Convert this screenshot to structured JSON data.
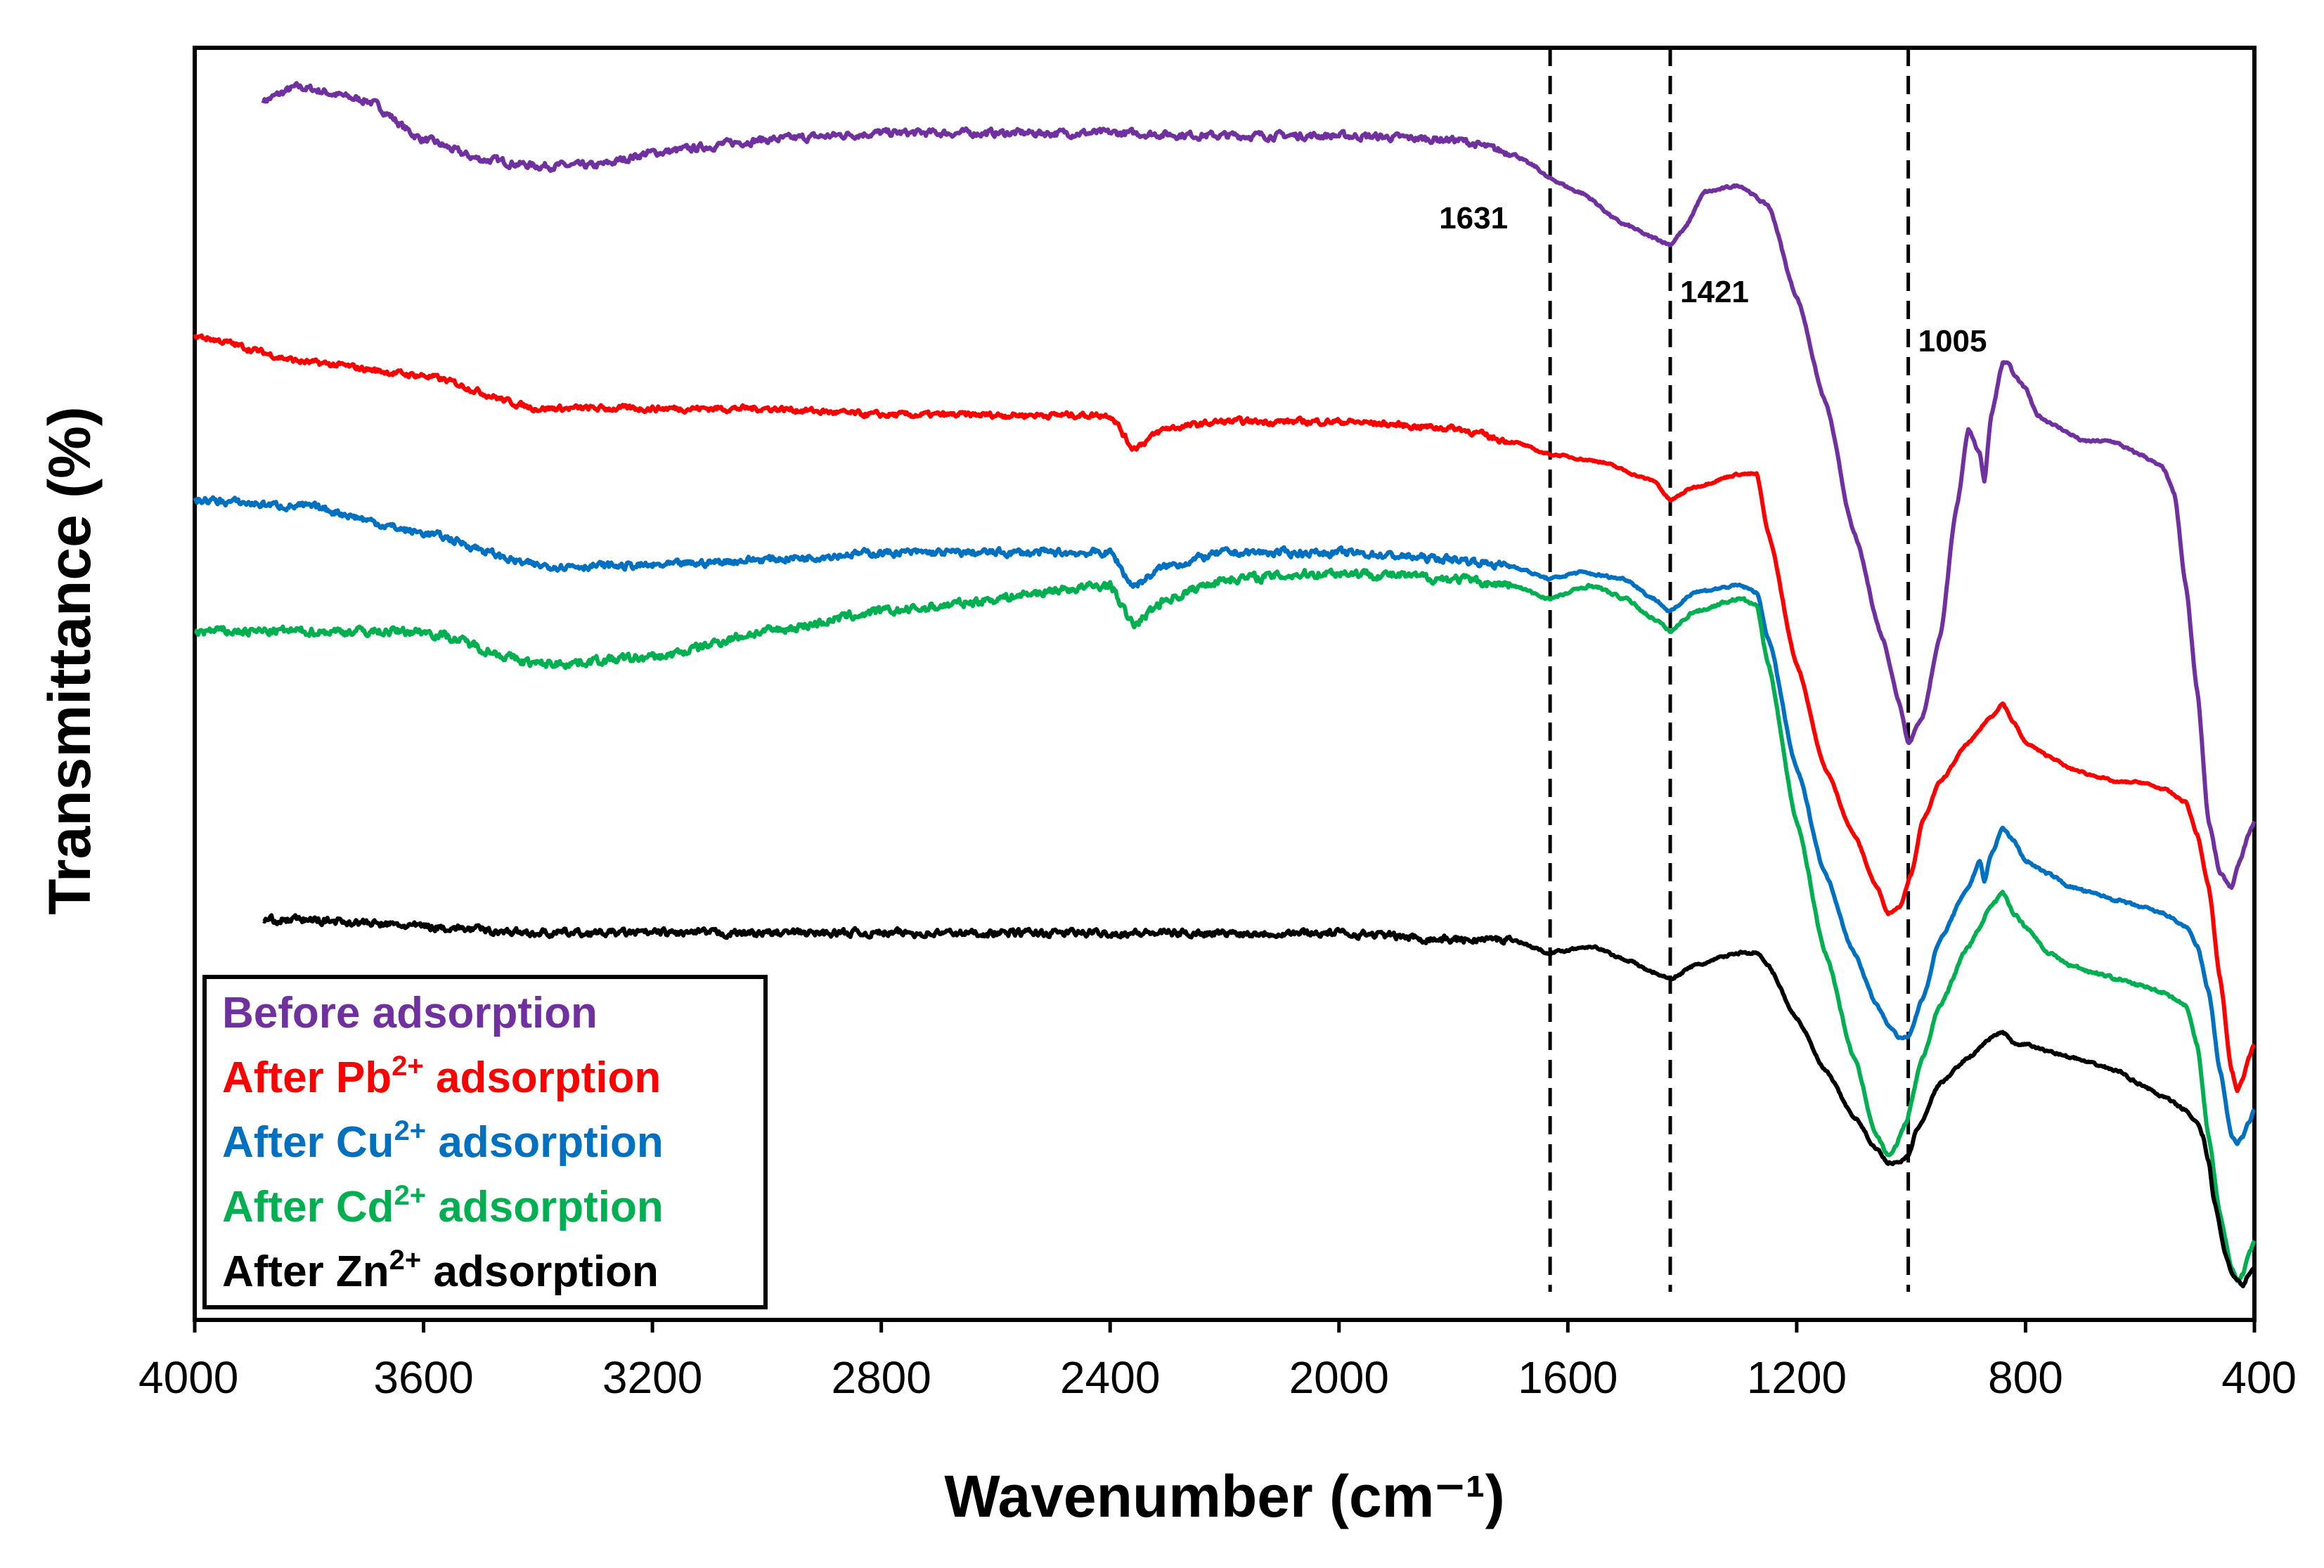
{
  "chart_data": {
    "type": "line",
    "title": "",
    "xlabel": "Wavenumber (cm⁻¹)",
    "ylabel": "Transmittance (%)",
    "xlim": [
      4000,
      400
    ],
    "x_reversed": true,
    "x_ticks": [
      "4000",
      "3600",
      "3200",
      "2800",
      "2400",
      "2000",
      "1600",
      "1200",
      "800",
      "400"
    ],
    "grid": false,
    "legend_position": "bottom-left",
    "reference_lines": [
      {
        "x": 1631,
        "label": "1631",
        "style": "dashed"
      },
      {
        "x": 1421,
        "label": "1421",
        "style": "dashed"
      },
      {
        "x": 1005,
        "label": "1005",
        "style": "dashed"
      }
    ],
    "series": [
      {
        "name": "Before adsorption",
        "legend_prefix": "Before adsorption",
        "legend_sup": "",
        "legend_suffix": "",
        "color": "#7030A0",
        "noise": 0.5,
        "x": [
          3880,
          3820,
          3700,
          3600,
          3500,
          3400,
          3300,
          3200,
          3000,
          2800,
          2600,
          2400,
          2200,
          2000,
          1800,
          1700,
          1660,
          1631,
          1580,
          1500,
          1450,
          1421,
          1400,
          1360,
          1300,
          1250,
          1200,
          1150,
          1100,
          1050,
          1020,
          1005,
          980,
          950,
          920,
          900,
          880,
          872,
          860,
          840,
          830,
          820,
          800,
          780,
          760,
          740,
          720,
          700,
          680,
          650,
          600,
          560,
          540,
          520,
          500,
          480,
          460,
          440,
          425,
          410,
          400
        ],
        "y": [
          93,
          94,
          93,
          90,
          88.5,
          88,
          88,
          89,
          90,
          90.5,
          90.5,
          90.5,
          90.3,
          90.3,
          90,
          89,
          88,
          87,
          86,
          83.5,
          82.5,
          82,
          83,
          86,
          86.5,
          85,
          78,
          70,
          60,
          52,
          47,
          44,
          46,
          52,
          62,
          68,
          66,
          64,
          69,
          73,
          73,
          72,
          71,
          69,
          68.5,
          68,
          67.5,
          67,
          67,
          67,
          66,
          65,
          63,
          56,
          48,
          38,
          34,
          33,
          35,
          37,
          38
        ]
      },
      {
        "name": "After Pb2+ adsorption",
        "legend_prefix": "After Pb",
        "legend_sup": "2+",
        "legend_suffix": " adsorption",
        "color": "#FF0000",
        "noise": 0.4,
        "x": [
          4000,
          3800,
          3600,
          3400,
          3200,
          3000,
          2800,
          2400,
          2360,
          2300,
          2200,
          2000,
          1800,
          1700,
          1631,
          1550,
          1450,
          1421,
          1380,
          1300,
          1270,
          1250,
          1200,
          1150,
          1100,
          1060,
          1040,
          1020,
          1000,
          980,
          950,
          900,
          860,
          840,
          820,
          800,
          760,
          720,
          680,
          640,
          600,
          560,
          520,
          500,
          480,
          460,
          440,
          430,
          420,
          410,
          400
        ],
        "y": [
          75,
          73,
          72,
          69.5,
          69.5,
          69.5,
          69,
          69,
          66.5,
          68,
          68.5,
          68.5,
          68,
          67,
          66,
          65.5,
          64,
          62.5,
          63.5,
          64.5,
          64.5,
          60,
          50,
          42,
          37,
          33,
          31,
          31.5,
          34,
          38,
          41,
          44,
          46,
          47,
          45.5,
          44,
          43,
          42,
          41.5,
          41,
          41,
          40.5,
          39.5,
          37,
          33,
          26,
          19,
          17.5,
          18.5,
          20,
          21
        ]
      },
      {
        "name": "After Cu2+ adsorption",
        "legend_prefix": "After Cu",
        "legend_sup": "2+",
        "legend_suffix": " adsorption",
        "color": "#0070C0",
        "noise": 0.5,
        "x": [
          4000,
          3800,
          3600,
          3400,
          3200,
          3000,
          2800,
          2400,
          2360,
          2300,
          2200,
          2000,
          1800,
          1700,
          1631,
          1580,
          1500,
          1450,
          1421,
          1380,
          1300,
          1270,
          1250,
          1200,
          1150,
          1100,
          1060,
          1040,
          1020,
          1005,
          980,
          950,
          900,
          880,
          872,
          860,
          840,
          820,
          800,
          760,
          720,
          680,
          640,
          600,
          560,
          520,
          500,
          480,
          460,
          440,
          430,
          420,
          410,
          400
        ],
        "y": [
          62.5,
          62,
          60,
          57.5,
          57.5,
          58,
          58.5,
          58.5,
          56,
          57.5,
          58.5,
          58.5,
          58,
          57.5,
          56.5,
          57,
          56.5,
          55,
          54,
          55.5,
          56,
          55.5,
          52,
          42,
          34,
          28,
          24,
          22.5,
          21.5,
          21.5,
          24.5,
          29,
          33,
          35,
          33.5,
          35.5,
          37.5,
          36.5,
          35,
          34,
          33,
          32.5,
          32,
          31.5,
          31,
          30,
          28.5,
          25,
          19,
          14,
          13.5,
          14,
          15,
          16
        ]
      },
      {
        "name": "After Cd2+ adsorption",
        "legend_prefix": "After Cd",
        "legend_sup": "2+",
        "legend_suffix": " adsorption",
        "color": "#00B050",
        "noise": 0.6,
        "x": [
          4000,
          3800,
          3600,
          3400,
          3200,
          3000,
          2800,
          2400,
          2360,
          2300,
          2200,
          2000,
          1800,
          1700,
          1631,
          1560,
          1500,
          1450,
          1421,
          1380,
          1300,
          1270,
          1250,
          1200,
          1150,
          1100,
          1060,
          1040,
          1030,
          1010,
          980,
          950,
          900,
          860,
          840,
          820,
          800,
          760,
          720,
          680,
          640,
          600,
          560,
          520,
          500,
          480,
          460,
          440,
          430,
          420,
          410,
          400
        ],
        "y": [
          52.5,
          52.5,
          52.5,
          50,
          50.5,
          52.5,
          54,
          56,
          53,
          55,
          56.5,
          57,
          56.5,
          56,
          55,
          56,
          55,
          53.5,
          52.5,
          54,
          55,
          54.5,
          50,
          38,
          28,
          20,
          14,
          12.5,
          13,
          15,
          20,
          24,
          28.5,
          31.5,
          32.5,
          31,
          30,
          28,
          27,
          26.5,
          26,
          25.5,
          25,
          24,
          21,
          14,
          8,
          4,
          3,
          3.5,
          5,
          6
        ]
      },
      {
        "name": "After Zn2+ adsorption",
        "legend_prefix": "After Zn",
        "legend_sup": "2+",
        "legend_suffix": " adsorption",
        "color": "#000000",
        "noise": 0.5,
        "x": [
          3880,
          3800,
          3600,
          3400,
          3200,
          3000,
          2800,
          2400,
          2200,
          2000,
          1800,
          1700,
          1631,
          1560,
          1500,
          1450,
          1421,
          1380,
          1300,
          1270,
          1250,
          1200,
          1150,
          1100,
          1060,
          1040,
          1020,
          1005,
          990,
          950,
          900,
          860,
          840,
          820,
          800,
          760,
          720,
          680,
          640,
          600,
          560,
          520,
          500,
          490,
          480,
          470,
          450,
          440,
          430,
          420,
          410,
          400
        ],
        "y": [
          30.5,
          30.5,
          30,
          29.5,
          29.5,
          29.5,
          29.5,
          29.5,
          29.5,
          29.5,
          29,
          29,
          28,
          28.5,
          27.5,
          26.5,
          26,
          27,
          28,
          28,
          27,
          23,
          19,
          15.5,
          13,
          12,
          12,
          12.5,
          14.5,
          18,
          20,
          21.5,
          22,
          21,
          21,
          20.5,
          20,
          19.5,
          19,
          18,
          17,
          16,
          15,
          14,
          12,
          9,
          5,
          3.5,
          3,
          2.5,
          3.5,
          4
        ]
      }
    ]
  }
}
